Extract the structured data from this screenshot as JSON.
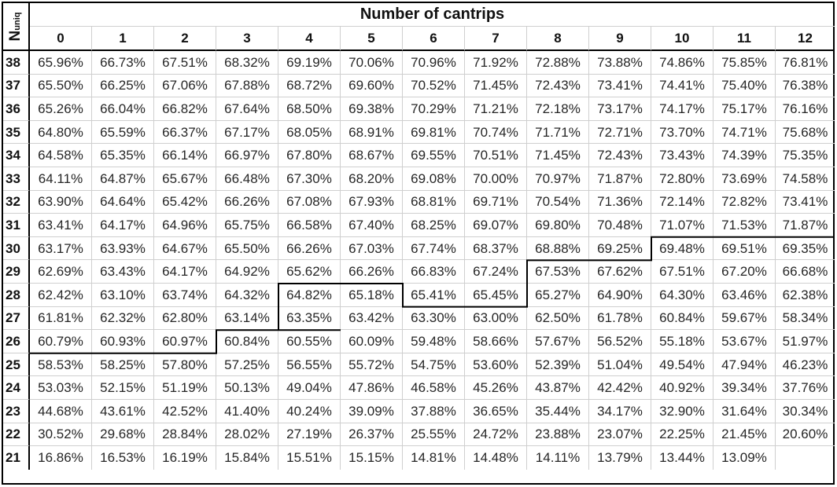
{
  "table": {
    "title": "Number of cantrips",
    "row_axis_label": {
      "main": "N",
      "sub": "uniq"
    },
    "columns": [
      "0",
      "1",
      "2",
      "3",
      "4",
      "5",
      "6",
      "7",
      "8",
      "9",
      "10",
      "11",
      "12"
    ],
    "rows": [
      {
        "label": "38",
        "values": [
          "65.96%",
          "66.73%",
          "67.51%",
          "68.32%",
          "69.19%",
          "70.06%",
          "70.96%",
          "71.92%",
          "72.88%",
          "73.88%",
          "74.86%",
          "75.85%",
          "76.81%"
        ]
      },
      {
        "label": "37",
        "values": [
          "65.50%",
          "66.25%",
          "67.06%",
          "67.88%",
          "68.72%",
          "69.60%",
          "70.52%",
          "71.45%",
          "72.43%",
          "73.41%",
          "74.41%",
          "75.40%",
          "76.38%"
        ]
      },
      {
        "label": "36",
        "values": [
          "65.26%",
          "66.04%",
          "66.82%",
          "67.64%",
          "68.50%",
          "69.38%",
          "70.29%",
          "71.21%",
          "72.18%",
          "73.17%",
          "74.17%",
          "75.17%",
          "76.16%"
        ]
      },
      {
        "label": "35",
        "values": [
          "64.80%",
          "65.59%",
          "66.37%",
          "67.17%",
          "68.05%",
          "68.91%",
          "69.81%",
          "70.74%",
          "71.71%",
          "72.71%",
          "73.70%",
          "74.71%",
          "75.68%"
        ]
      },
      {
        "label": "34",
        "values": [
          "64.58%",
          "65.35%",
          "66.14%",
          "66.97%",
          "67.80%",
          "68.67%",
          "69.55%",
          "70.51%",
          "71.45%",
          "72.43%",
          "73.43%",
          "74.39%",
          "75.35%"
        ]
      },
      {
        "label": "33",
        "values": [
          "64.11%",
          "64.87%",
          "65.67%",
          "66.48%",
          "67.30%",
          "68.20%",
          "69.08%",
          "70.00%",
          "70.97%",
          "71.87%",
          "72.80%",
          "73.69%",
          "74.58%"
        ]
      },
      {
        "label": "32",
        "values": [
          "63.90%",
          "64.64%",
          "65.42%",
          "66.26%",
          "67.08%",
          "67.93%",
          "68.81%",
          "69.71%",
          "70.54%",
          "71.36%",
          "72.14%",
          "72.82%",
          "73.41%"
        ]
      },
      {
        "label": "31",
        "values": [
          "63.41%",
          "64.17%",
          "64.96%",
          "65.75%",
          "66.58%",
          "67.40%",
          "68.25%",
          "69.07%",
          "69.80%",
          "70.48%",
          "71.07%",
          "71.53%",
          "71.87%"
        ]
      },
      {
        "label": "30",
        "values": [
          "63.17%",
          "63.93%",
          "64.67%",
          "65.50%",
          "66.26%",
          "67.03%",
          "67.74%",
          "68.37%",
          "68.88%",
          "69.25%",
          "69.48%",
          "69.51%",
          "69.35%"
        ]
      },
      {
        "label": "29",
        "values": [
          "62.69%",
          "63.43%",
          "64.17%",
          "64.92%",
          "65.62%",
          "66.26%",
          "66.83%",
          "67.24%",
          "67.53%",
          "67.62%",
          "67.51%",
          "67.20%",
          "66.68%"
        ]
      },
      {
        "label": "28",
        "values": [
          "62.42%",
          "63.10%",
          "63.74%",
          "64.32%",
          "64.82%",
          "65.18%",
          "65.41%",
          "65.45%",
          "65.27%",
          "64.90%",
          "64.30%",
          "63.46%",
          "62.38%"
        ]
      },
      {
        "label": "27",
        "values": [
          "61.81%",
          "62.32%",
          "62.80%",
          "63.14%",
          "63.35%",
          "63.42%",
          "63.30%",
          "63.00%",
          "62.50%",
          "61.78%",
          "60.84%",
          "59.67%",
          "58.34%"
        ]
      },
      {
        "label": "26",
        "values": [
          "60.79%",
          "60.93%",
          "60.97%",
          "60.84%",
          "60.55%",
          "60.09%",
          "59.48%",
          "58.66%",
          "57.67%",
          "56.52%",
          "55.18%",
          "53.67%",
          "51.97%"
        ]
      },
      {
        "label": "25",
        "values": [
          "58.53%",
          "58.25%",
          "57.80%",
          "57.25%",
          "56.55%",
          "55.72%",
          "54.75%",
          "53.60%",
          "52.39%",
          "51.04%",
          "49.54%",
          "47.94%",
          "46.23%"
        ]
      },
      {
        "label": "24",
        "values": [
          "53.03%",
          "52.15%",
          "51.19%",
          "50.13%",
          "49.04%",
          "47.86%",
          "46.58%",
          "45.26%",
          "43.87%",
          "42.42%",
          "40.92%",
          "39.34%",
          "37.76%"
        ]
      },
      {
        "label": "23",
        "values": [
          "44.68%",
          "43.61%",
          "42.52%",
          "41.40%",
          "40.24%",
          "39.09%",
          "37.88%",
          "36.65%",
          "35.44%",
          "34.17%",
          "32.90%",
          "31.64%",
          "30.34%"
        ]
      },
      {
        "label": "22",
        "values": [
          "30.52%",
          "29.68%",
          "28.84%",
          "28.02%",
          "27.19%",
          "26.37%",
          "25.55%",
          "24.72%",
          "23.88%",
          "23.07%",
          "22.25%",
          "21.45%",
          "20.60%"
        ]
      },
      {
        "label": "21",
        "values": [
          "16.86%",
          "16.53%",
          "16.19%",
          "15.84%",
          "15.51%",
          "15.15%",
          "14.81%",
          "14.48%",
          "14.11%",
          "13.79%",
          "13.44%",
          "13.09%",
          ""
        ]
      }
    ],
    "optimum_boundary": {
      "description": "Staircase line separating cells where the value is maximal for each cantrip count",
      "steps": [
        {
          "columns": [
            0,
            2
          ],
          "between_rows": [
            "26",
            "25"
          ]
        },
        {
          "columns": [
            3,
            4
          ],
          "between_rows": [
            "27",
            "26"
          ]
        },
        {
          "columns": [
            4,
            5
          ],
          "between_rows": [
            "29",
            "28"
          ]
        },
        {
          "columns": [
            6,
            7
          ],
          "between_rows": [
            "28",
            "27"
          ]
        },
        {
          "columns": [
            8,
            9
          ],
          "between_rows": [
            "30",
            "29"
          ]
        },
        {
          "columns": [
            10,
            12
          ],
          "between_rows": [
            "31",
            "30"
          ]
        }
      ]
    }
  }
}
